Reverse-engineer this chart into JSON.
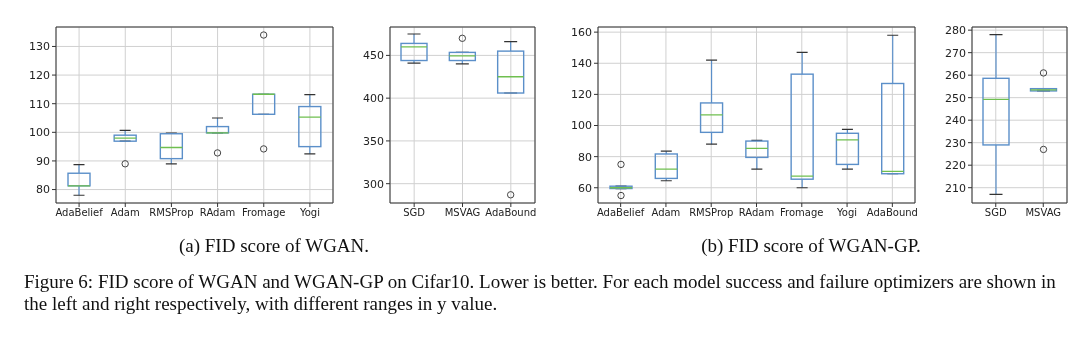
{
  "chart_data": [
    {
      "type": "box",
      "categories": [
        "AdaBelief",
        "Adam",
        "RMSProp",
        "RAdam",
        "Fromage",
        "Yogi"
      ],
      "color": "#5b8fc9",
      "ylim": [
        75.3,
        136.8
      ],
      "yticks": [
        80,
        90,
        100,
        110,
        120,
        130
      ],
      "grid": true,
      "boxes": [
        {
          "low": 78,
          "q1": 81.3,
          "median": 81.3,
          "q3": 85.7,
          "high": 88.7
        },
        {
          "low": 96.9,
          "q1": 96.9,
          "median": 98,
          "q3": 99,
          "high": 100.7,
          "outliers": [
            89
          ]
        },
        {
          "low": 89,
          "q1": 90.8,
          "median": 94.7,
          "q3": 99.5,
          "high": 99.7
        },
        {
          "low": 99.8,
          "q1": 99.8,
          "median": 99.8,
          "q3": 102,
          "high": 105,
          "outliers": [
            92.8
          ]
        },
        {
          "low": 106.3,
          "q1": 106.3,
          "median": 113.3,
          "q3": 113.3,
          "high": 113.3,
          "outliers": [
            94.2,
            134
          ]
        },
        {
          "low": 92.5,
          "q1": 95,
          "median": 105.3,
          "q3": 109,
          "high": 113.2
        }
      ],
      "annotations": [
        "(a) FID score of WGAN.",
        "Figure 6: FID score of WGAN and WGAN-GP on Cifar10. Lower is better. For each model success and failure optimizers are shown in the left and right respectively, with different ranges in y value."
      ]
    },
    {
      "type": "box",
      "categories": [
        "SGD",
        "MSVAG",
        "AdaBound"
      ],
      "color": "#5b8fc9",
      "ylim": [
        277.4,
        483.2
      ],
      "yticks": [
        300,
        350,
        400,
        450
      ],
      "grid": true,
      "boxes": [
        {
          "low": 441,
          "q1": 444,
          "median": 460,
          "q3": 464,
          "high": 475
        },
        {
          "low": 440,
          "q1": 444,
          "median": 449.5,
          "q3": 453.5,
          "high": 453.5,
          "outliers": [
            470
          ]
        },
        {
          "low": 406,
          "q1": 406,
          "median": 425,
          "q3": 455,
          "high": 466,
          "outliers": [
            287
          ]
        }
      ]
    },
    {
      "type": "box",
      "categories": [
        "AdaBelief",
        "Adam",
        "RMSProp",
        "RAdam",
        "Fromage",
        "Yogi",
        "AdaBound"
      ],
      "color": "#5b8fc9",
      "ylim": [
        50.2,
        163.3
      ],
      "yticks": [
        60,
        80,
        100,
        120,
        140,
        160
      ],
      "grid": true,
      "boxes": [
        {
          "low": 59.5,
          "q1": 59.5,
          "median": 60,
          "q3": 61,
          "high": 61,
          "outliers": [
            55,
            75
          ]
        },
        {
          "low": 64.5,
          "q1": 66,
          "median": 72,
          "q3": 81.7,
          "high": 83.5
        },
        {
          "low": 88,
          "q1": 95.6,
          "median": 106.8,
          "q3": 114.5,
          "high": 142
        },
        {
          "low": 72,
          "q1": 79.5,
          "median": 85.3,
          "q3": 90,
          "high": 90.5
        },
        {
          "low": 60,
          "q1": 65.5,
          "median": 67.5,
          "q3": 133,
          "high": 147
        },
        {
          "low": 72,
          "q1": 75,
          "median": 90.8,
          "q3": 95,
          "high": 97.5
        },
        {
          "low": 69,
          "q1": 69,
          "median": 70.5,
          "q3": 127,
          "high": 158
        }
      ],
      "annotations": [
        "(b) FID score of WGAN-GP."
      ]
    },
    {
      "type": "box",
      "categories": [
        "SGD",
        "MSVAG"
      ],
      "color": "#5b8fc9",
      "ylim": [
        203.2,
        281.4
      ],
      "yticks": [
        210,
        220,
        230,
        240,
        250,
        260,
        270,
        280
      ],
      "grid": true,
      "boxes": [
        {
          "low": 207,
          "q1": 229,
          "median": 249.2,
          "q3": 258.6,
          "high": 278
        },
        {
          "low": 253,
          "q1": 253,
          "median": 253.5,
          "q3": 254,
          "high": 254,
          "outliers": [
            227,
            261
          ]
        }
      ]
    }
  ]
}
